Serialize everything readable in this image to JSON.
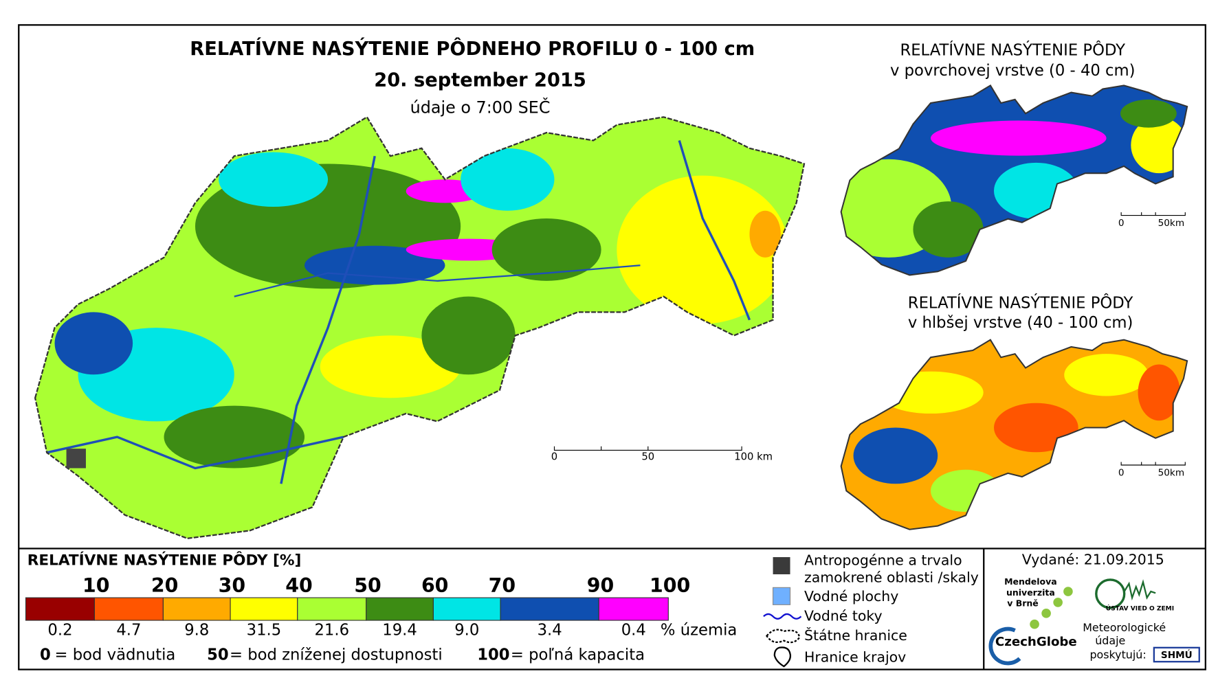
{
  "main_map": {
    "title": "RELATÍVNE NASÝTENIE PÔDNEHO PROFILU 0 - 100 cm",
    "date": "20. september 2015",
    "time_note": "údaje o 7:00 SEČ",
    "scale_labels": [
      "0",
      "50",
      "100 km"
    ]
  },
  "insets": [
    {
      "title": "RELATÍVNE NASÝTENIE PÔDY",
      "subtitle": "v povrchovej vrstve (0 - 40 cm)",
      "scale_labels": [
        "0",
        "50km"
      ]
    },
    {
      "title": "RELATÍVNE NASÝTENIE PÔDY",
      "subtitle": "v hlbšej vrstve (40 - 100 cm)",
      "scale_labels": [
        "0",
        "50km"
      ]
    }
  ],
  "legend": {
    "title": "RELATÍVNE NASÝTENIE PÔDY [%]",
    "breaks": [
      "10",
      "20",
      "30",
      "40",
      "50",
      "60",
      "70",
      "90",
      "100"
    ],
    "classes": [
      {
        "color": "#990000",
        "share": "0.2"
      },
      {
        "color": "#ff5500",
        "share": "4.7"
      },
      {
        "color": "#ffaa00",
        "share": "9.8"
      },
      {
        "color": "#ffff00",
        "share": "31.5"
      },
      {
        "color": "#aaff33",
        "share": "21.6"
      },
      {
        "color": "#3d8c14",
        "share": "19.4"
      },
      {
        "color": "#00e5e5",
        "share": "9.0"
      },
      {
        "color": "#0f4fb0",
        "share": "3.4"
      },
      {
        "color": "#ff00ff",
        "share": "0.4"
      }
    ],
    "share_unit": "% územia",
    "notes": [
      {
        "value": "0",
        "text": "= bod vädnutia"
      },
      {
        "value": "50",
        "text": "= bod zníženej dostupnosti"
      },
      {
        "value": "100",
        "text": "= poľná kapacita"
      }
    ]
  },
  "symbols": [
    {
      "lines": [
        "Antropogénne a trvalo",
        "zamokrené oblasti /skaly"
      ]
    },
    {
      "lines": [
        "Vodné plochy"
      ]
    },
    {
      "lines": [
        "Vodné toky"
      ]
    },
    {
      "lines": [
        "Štátne hranice"
      ]
    },
    {
      "lines": [
        "Hranice krajov"
      ]
    }
  ],
  "footer": {
    "issued": "Vydané: 21.09.2015",
    "mendel": [
      "Mendelova",
      "univerzita",
      "v Brně"
    ],
    "czechglobe": "CzechGlobe",
    "ustav": "ÚSTAV VIED O ZEMI",
    "meteo": [
      "Meteorologické",
      "údaje",
      "poskytujú:"
    ],
    "shmu": "SHMÚ"
  }
}
